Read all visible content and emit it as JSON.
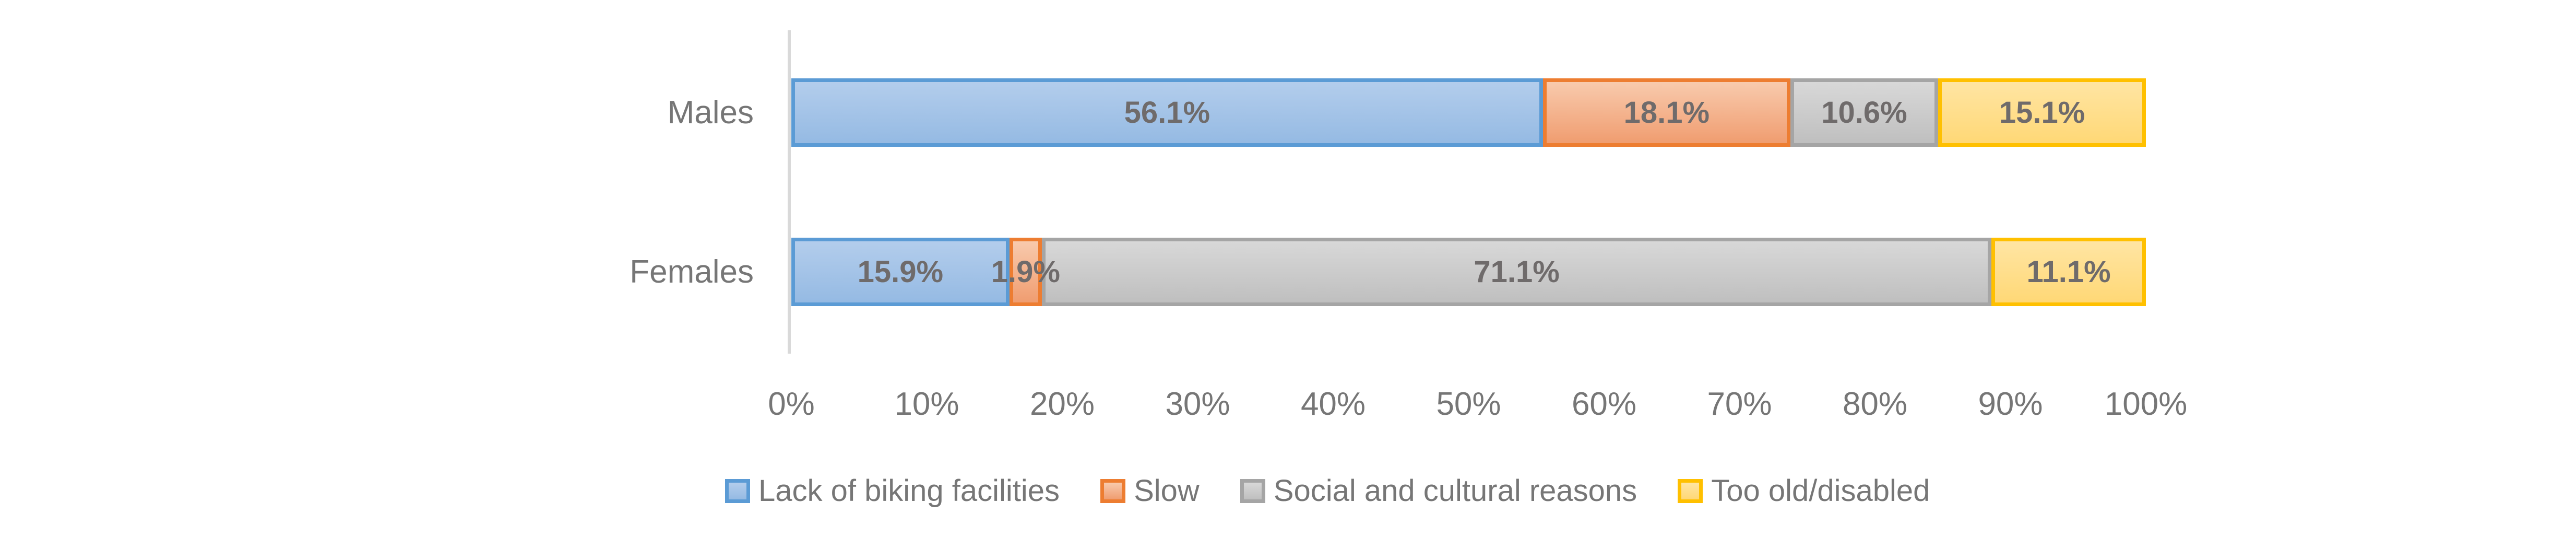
{
  "figure": {
    "background": "#FFFFFF"
  },
  "chart_data": {
    "type": "bar",
    "orientation": "horizontal",
    "stacked": true,
    "stacked_total": 100,
    "title": "",
    "xlabel": "",
    "ylabel": "",
    "categories": [
      "Males",
      "Females"
    ],
    "series": [
      {
        "name": "Lack of biking facilities",
        "border_color": "#5B9BD5",
        "fill_top": "#B3CDEC",
        "fill_bottom": "#95BAE3",
        "values": [
          56.1,
          15.9
        ]
      },
      {
        "name": "Slow",
        "border_color": "#ED7D31",
        "fill_top": "#F8CAAD",
        "fill_bottom": "#F09D70",
        "values": [
          18.1,
          1.9
        ]
      },
      {
        "name": "Social and cultural reasons",
        "border_color": "#A5A5A5",
        "fill_top": "#D8D8D8",
        "fill_bottom": "#BFBFBF",
        "values": [
          10.6,
          71.1
        ]
      },
      {
        "name": "Too old/disabled",
        "border_color": "#FFC000",
        "fill_top": "#FFE5A3",
        "fill_bottom": "#FFD876",
        "values": [
          15.1,
          11.1
        ]
      }
    ],
    "data_labels": [
      [
        "56.1%",
        "18.1%",
        "10.6%",
        "15.1%"
      ],
      [
        "15.9%",
        "1.9%",
        "71.1%",
        "11.1%"
      ]
    ],
    "x_tick_labels": [
      "0%",
      "10%",
      "20%",
      "30%",
      "40%",
      "50%",
      "60%",
      "70%",
      "80%",
      "90%",
      "100%"
    ],
    "xlim": [
      0,
      100
    ],
    "grid": false,
    "legend_position": "bottom",
    "axis_line_color": "#D9D9D9",
    "axis_text_color": "#767676",
    "data_label_color": "#6F6B6B"
  }
}
